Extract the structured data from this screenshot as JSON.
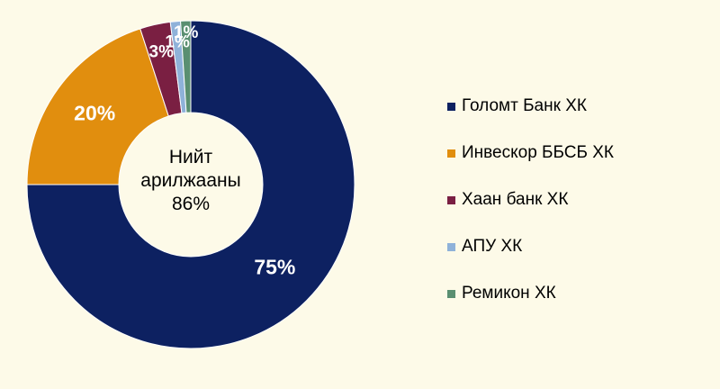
{
  "chart_data": {
    "type": "pie",
    "variant": "donut",
    "title": "",
    "center_label": {
      "line1": "Нийт",
      "line2": "арилжааны",
      "line3": "86%"
    },
    "series": [
      {
        "name": "Голомт Банк ХК",
        "value": 75,
        "label": "75%",
        "color": "#0d2161"
      },
      {
        "name": "Инвескор ББСБ ХК",
        "value": 20,
        "label": "20%",
        "color": "#e18e0e"
      },
      {
        "name": "Хаан банк ХК",
        "value": 3,
        "label": "3%",
        "color": "#7a1f42"
      },
      {
        "name": "АПУ ХК",
        "value": 1,
        "label": "1%",
        "color": "#8fb2d9"
      },
      {
        "name": "Ремикон ХК",
        "value": 1,
        "label": "1%",
        "color": "#5a8f71"
      }
    ],
    "legend_position": "right"
  },
  "colors": {
    "background": "#fdfae8"
  }
}
